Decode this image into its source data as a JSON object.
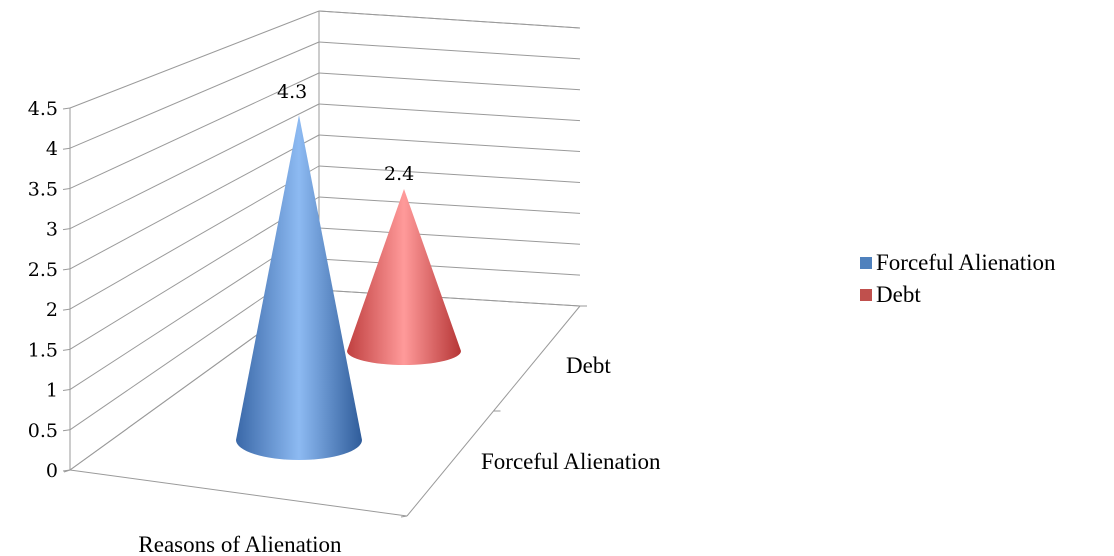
{
  "chart_data": {
    "type": "bar",
    "shape": "cone-3d",
    "categories": [
      "Reasons of Alienation"
    ],
    "series": [
      {
        "name": "Forceful Alienation",
        "values": [
          4.3
        ],
        "color": "#4F81BD"
      },
      {
        "name": "Debt",
        "values": [
          2.4
        ],
        "color": "#C0504D"
      }
    ],
    "depth_labels": [
      "Forceful Alienation",
      "Debt"
    ],
    "y_ticks": [
      "0",
      "0.5",
      "1",
      "1.5",
      "2",
      "2.5",
      "3",
      "3.5",
      "4",
      "4.5"
    ],
    "ylim": [
      0,
      4.5
    ],
    "data_labels": [
      "4.3",
      "2.4"
    ],
    "grid": true,
    "legend_position": "right"
  }
}
